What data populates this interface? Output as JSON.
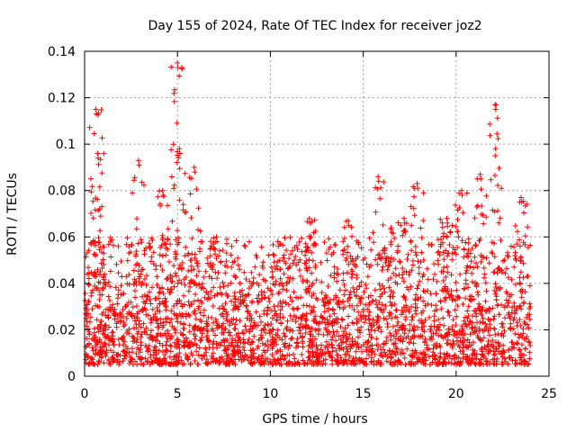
{
  "chart_data": {
    "type": "scatter",
    "title": "Day 155 of 2024, Rate Of TEC Index for receiver joz2",
    "xlabel": "GPS time / hours",
    "ylabel": "ROTI / TECUs",
    "xlim": [
      0,
      25
    ],
    "ylim": [
      0,
      0.14
    ],
    "xticks": [
      0,
      5,
      10,
      15,
      20,
      25
    ],
    "xtick_labels": [
      "0",
      "5",
      "10",
      "15",
      "20",
      "25"
    ],
    "yticks": [
      0,
      0.02,
      0.04,
      0.06,
      0.08,
      0.1,
      0.12,
      0.14
    ],
    "ytick_labels": [
      "0",
      "0.02",
      "0.04",
      "0.06",
      "0.08",
      "0.1",
      "0.12",
      "0.14"
    ],
    "grid": true,
    "marker": "+",
    "series": [
      {
        "name": "ROTI",
        "color": "#ff0000",
        "data_range_hours": [
          0,
          24
        ],
        "typical_band": [
          0.005,
          0.035
        ],
        "peaks": [
          {
            "x": 0.6,
            "y": 0.115
          },
          {
            "x": 0.7,
            "y": 0.096
          },
          {
            "x": 2.9,
            "y": 0.093
          },
          {
            "x": 4.2,
            "y": 0.08
          },
          {
            "x": 5.0,
            "y": 0.135
          },
          {
            "x": 5.1,
            "y": 0.098
          },
          {
            "x": 5.9,
            "y": 0.09
          },
          {
            "x": 7.1,
            "y": 0.06
          },
          {
            "x": 10.4,
            "y": 0.058
          },
          {
            "x": 12.1,
            "y": 0.068
          },
          {
            "x": 14.2,
            "y": 0.067
          },
          {
            "x": 15.8,
            "y": 0.086
          },
          {
            "x": 16.5,
            "y": 0.064
          },
          {
            "x": 17.2,
            "y": 0.068
          },
          {
            "x": 17.9,
            "y": 0.083
          },
          {
            "x": 19.5,
            "y": 0.068
          },
          {
            "x": 20.3,
            "y": 0.08
          },
          {
            "x": 21.3,
            "y": 0.087
          },
          {
            "x": 22.1,
            "y": 0.117
          },
          {
            "x": 23.5,
            "y": 0.077
          }
        ],
        "quiet_dips": [
          {
            "x": 10.5,
            "y": 0.012
          },
          {
            "x": 20.8,
            "y": 0.01
          }
        ]
      }
    ]
  }
}
